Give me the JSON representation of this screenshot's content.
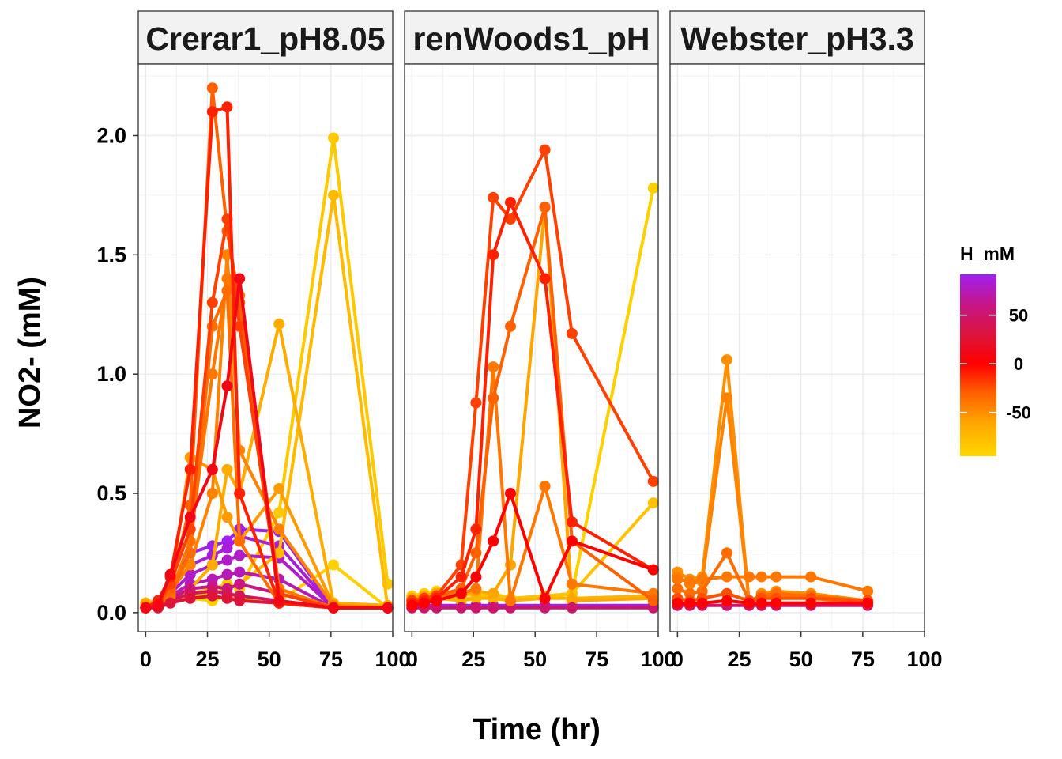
{
  "chart_data": {
    "type": "line",
    "xlabel": "Time (hr)",
    "ylabel": "NO2- (mM)",
    "xlim": [
      -3,
      100
    ],
    "ylim": [
      -0.08,
      2.3
    ],
    "x_ticks": [
      0,
      25,
      50,
      75,
      100
    ],
    "x_tick_labels": [
      "0",
      "25",
      "50",
      "75",
      "100"
    ],
    "y_ticks": [
      0.0,
      0.5,
      1.0,
      1.5,
      2.0
    ],
    "y_tick_labels": [
      "0.0",
      "0.5",
      "1.0",
      "1.5",
      "2.0"
    ],
    "grid": true,
    "legend": {
      "title": "H_mM",
      "position": "right",
      "type": "colorbar",
      "range": [
        -95,
        92
      ],
      "ticks": [
        50,
        0,
        -50
      ],
      "tick_labels": [
        "50",
        "0",
        "-50"
      ],
      "gradient": [
        {
          "value": -95,
          "color": "#FFD700"
        },
        {
          "value": -60,
          "color": "#FFA500"
        },
        {
          "value": -30,
          "color": "#FF6000"
        },
        {
          "value": 0,
          "color": "#FF0000"
        },
        {
          "value": 30,
          "color": "#DC143C"
        },
        {
          "value": 60,
          "color": "#C71585"
        },
        {
          "value": 92,
          "color": "#A020F0"
        }
      ]
    },
    "facets": [
      {
        "title": "Crerar1_pH8.05",
        "series": [
          {
            "h": -30,
            "x": [
              0,
              5,
              10,
              18,
              27,
              33,
              38,
              54,
              76,
              98
            ],
            "y": [
              0.02,
              0.03,
              0.1,
              0.45,
              2.2,
              1.6,
              1.3,
              0.05,
              0.02,
              0.02
            ]
          },
          {
            "h": -10,
            "x": [
              0,
              5,
              10,
              18,
              27,
              33,
              38,
              54,
              76,
              98
            ],
            "y": [
              0.02,
              0.05,
              0.15,
              0.6,
              2.1,
              2.12,
              0.5,
              0.04,
              0.02,
              0.02
            ]
          },
          {
            "h": -20,
            "x": [
              0,
              5,
              10,
              18,
              27,
              33,
              38,
              54,
              76,
              98
            ],
            "y": [
              0.02,
              0.04,
              0.12,
              0.35,
              1.3,
              1.65,
              1.2,
              0.08,
              0.02,
              0.02
            ]
          },
          {
            "h": 10,
            "x": [
              0,
              5,
              10,
              18,
              27,
              33,
              38,
              54,
              76,
              98
            ],
            "y": [
              0.02,
              0.03,
              0.16,
              0.4,
              0.6,
              0.95,
              1.4,
              0.05,
              0.02,
              0.02
            ]
          },
          {
            "h": -40,
            "x": [
              0,
              5,
              10,
              18,
              27,
              33,
              38,
              54,
              76,
              98
            ],
            "y": [
              0.02,
              0.04,
              0.08,
              0.3,
              1.0,
              1.4,
              1.33,
              0.1,
              0.02,
              0.02
            ]
          },
          {
            "h": -55,
            "x": [
              0,
              5,
              10,
              18,
              27,
              33,
              38,
              54,
              76,
              98
            ],
            "y": [
              0.03,
              0.05,
              0.1,
              0.65,
              0.6,
              0.4,
              0.3,
              0.52,
              0.03,
              0.02
            ]
          },
          {
            "h": -45,
            "x": [
              0,
              5,
              10,
              18,
              27,
              33,
              38,
              54,
              76,
              98
            ],
            "y": [
              0.02,
              0.04,
              0.09,
              0.2,
              0.5,
              1.5,
              0.68,
              0.35,
              0.03,
              0.02
            ]
          },
          {
            "h": -35,
            "x": [
              0,
              5,
              10,
              18,
              27,
              33,
              38,
              54,
              76,
              98
            ],
            "y": [
              0.02,
              0.03,
              0.07,
              0.25,
              1.2,
              1.35,
              0.3,
              0.04,
              0.02,
              0.02
            ]
          },
          {
            "h": -65,
            "x": [
              0,
              5,
              10,
              18,
              27,
              33,
              38,
              54,
              76,
              98
            ],
            "y": [
              0.04,
              0.05,
              0.06,
              0.1,
              0.2,
              0.6,
              0.5,
              1.21,
              0.04,
              0.03
            ]
          },
          {
            "h": -85,
            "x": [
              0,
              5,
              10,
              18,
              27,
              33,
              38,
              54,
              76,
              98
            ],
            "y": [
              0.04,
              0.05,
              0.06,
              0.08,
              0.1,
              0.12,
              0.1,
              0.42,
              1.99,
              0.12
            ]
          },
          {
            "h": -75,
            "x": [
              0,
              5,
              10,
              18,
              27,
              33,
              38,
              54,
              76,
              98
            ],
            "y": [
              0.03,
              0.04,
              0.05,
              0.07,
              0.08,
              0.1,
              0.12,
              0.25,
              1.75,
              0.02
            ]
          },
          {
            "h": -90,
            "x": [
              0,
              5,
              10,
              18,
              27,
              33,
              38,
              54,
              76,
              98
            ],
            "y": [
              0.04,
              0.04,
              0.05,
              0.06,
              0.05,
              0.07,
              0.06,
              0.05,
              0.2,
              0.02
            ]
          },
          {
            "h": 92,
            "x": [
              0,
              5,
              10,
              18,
              27,
              33,
              38,
              54,
              76,
              98
            ],
            "y": [
              0.02,
              0.04,
              0.1,
              0.25,
              0.28,
              0.3,
              0.35,
              0.34,
              0.02,
              0.02
            ]
          },
          {
            "h": 85,
            "x": [
              0,
              5,
              10,
              18,
              27,
              33,
              38,
              54,
              76,
              98
            ],
            "y": [
              0.02,
              0.03,
              0.09,
              0.2,
              0.24,
              0.27,
              0.32,
              0.28,
              0.02,
              0.02
            ]
          },
          {
            "h": 80,
            "x": [
              0,
              5,
              10,
              18,
              27,
              33,
              38,
              54,
              76,
              98
            ],
            "y": [
              0.02,
              0.03,
              0.08,
              0.16,
              0.2,
              0.22,
              0.24,
              0.23,
              0.02,
              0.02
            ]
          },
          {
            "h": 75,
            "x": [
              0,
              5,
              10,
              18,
              27,
              33,
              38,
              54,
              76,
              98
            ],
            "y": [
              0.02,
              0.03,
              0.07,
              0.12,
              0.14,
              0.16,
              0.17,
              0.14,
              0.02,
              0.02
            ]
          },
          {
            "h": 60,
            "x": [
              0,
              5,
              10,
              18,
              27,
              33,
              38,
              54,
              76,
              98
            ],
            "y": [
              0.02,
              0.03,
              0.06,
              0.1,
              0.11,
              0.1,
              0.12,
              0.08,
              0.02,
              0.02
            ]
          },
          {
            "h": 45,
            "x": [
              0,
              5,
              10,
              18,
              27,
              33,
              38,
              54,
              76,
              98
            ],
            "y": [
              0.02,
              0.03,
              0.05,
              0.08,
              0.09,
              0.08,
              0.07,
              0.05,
              0.02,
              0.02
            ]
          },
          {
            "h": 30,
            "x": [
              0,
              5,
              10,
              18,
              27,
              33,
              38,
              54,
              76,
              98
            ],
            "y": [
              0.02,
              0.02,
              0.04,
              0.06,
              0.07,
              0.06,
              0.05,
              0.04,
              0.02,
              0.02
            ]
          }
        ]
      },
      {
        "title": "renWoods1_pH",
        "series": [
          {
            "h": -20,
            "x": [
              0,
              5,
              10,
              20,
              26,
              33,
              40,
              54,
              65,
              98
            ],
            "y": [
              0.05,
              0.06,
              0.07,
              0.2,
              0.88,
              1.74,
              1.65,
              1.94,
              1.17,
              0.55
            ]
          },
          {
            "h": -10,
            "x": [
              0,
              5,
              10,
              20,
              26,
              33,
              40,
              54,
              65,
              98
            ],
            "y": [
              0.04,
              0.05,
              0.06,
              0.15,
              0.35,
              1.5,
              1.72,
              1.4,
              0.38,
              0.18
            ]
          },
          {
            "h": -30,
            "x": [
              0,
              5,
              10,
              20,
              26,
              33,
              40,
              54,
              65,
              98
            ],
            "y": [
              0.05,
              0.06,
              0.07,
              0.1,
              0.25,
              0.9,
              1.2,
              1.7,
              0.3,
              0.05
            ]
          },
          {
            "h": 0,
            "x": [
              0,
              5,
              10,
              20,
              26,
              33,
              40,
              54,
              65,
              98
            ],
            "y": [
              0.03,
              0.04,
              0.05,
              0.08,
              0.15,
              0.3,
              0.5,
              0.06,
              0.3,
              0.18
            ]
          },
          {
            "h": -40,
            "x": [
              0,
              5,
              10,
              20,
              26,
              33,
              40,
              54,
              65,
              98
            ],
            "y": [
              0.05,
              0.06,
              0.07,
              0.08,
              0.1,
              1.03,
              0.05,
              0.53,
              0.12,
              0.08
            ]
          },
          {
            "h": -60,
            "x": [
              0,
              5,
              10,
              20,
              26,
              33,
              40,
              54,
              65,
              98
            ],
            "y": [
              0.06,
              0.07,
              0.08,
              0.07,
              0.09,
              0.08,
              0.2,
              1.7,
              0.05,
              0.06
            ]
          },
          {
            "h": -90,
            "x": [
              0,
              5,
              10,
              20,
              26,
              33,
              40,
              54,
              65,
              98
            ],
            "y": [
              0.07,
              0.08,
              0.09,
              0.08,
              0.07,
              0.08,
              0.06,
              0.06,
              0.08,
              1.78
            ]
          },
          {
            "h": -80,
            "x": [
              0,
              5,
              10,
              20,
              26,
              33,
              40,
              54,
              65,
              98
            ],
            "y": [
              0.06,
              0.07,
              0.07,
              0.06,
              0.06,
              0.07,
              0.06,
              0.07,
              0.08,
              0.46
            ]
          },
          {
            "h": -70,
            "x": [
              0,
              5,
              10,
              20,
              26,
              33,
              40,
              54,
              65,
              98
            ],
            "y": [
              0.05,
              0.06,
              0.06,
              0.05,
              0.06,
              0.06,
              0.05,
              0.06,
              0.06,
              0.07
            ]
          },
          {
            "h": 85,
            "x": [
              0,
              5,
              10,
              20,
              26,
              33,
              40,
              54,
              65,
              98
            ],
            "y": [
              0.03,
              0.03,
              0.03,
              0.03,
              0.03,
              0.03,
              0.03,
              0.03,
              0.03,
              0.03
            ]
          },
          {
            "h": 50,
            "x": [
              0,
              5,
              10,
              20,
              26,
              33,
              40,
              54,
              65,
              98
            ],
            "y": [
              0.02,
              0.02,
              0.02,
              0.02,
              0.02,
              0.02,
              0.02,
              0.02,
              0.02,
              0.02
            ]
          }
        ]
      },
      {
        "title": "Webster_pH3.3",
        "series": [
          {
            "h": -50,
            "x": [
              0,
              5,
              10,
              20,
              29,
              34,
              40,
              54,
              77
            ],
            "y": [
              0.17,
              0.14,
              0.15,
              1.06,
              0.04,
              0.08,
              0.09,
              0.08,
              0.05
            ]
          },
          {
            "h": -45,
            "x": [
              0,
              5,
              10,
              20,
              29,
              34,
              40,
              54,
              77
            ],
            "y": [
              0.15,
              0.12,
              0.13,
              0.9,
              0.05,
              0.06,
              0.07,
              0.06,
              0.04
            ]
          },
          {
            "h": -40,
            "x": [
              0,
              5,
              10,
              20,
              29,
              34,
              40,
              54,
              77
            ],
            "y": [
              0.14,
              0.13,
              0.14,
              0.15,
              0.15,
              0.15,
              0.15,
              0.15,
              0.09
            ]
          },
          {
            "h": -35,
            "x": [
              0,
              5,
              10,
              20,
              29,
              34,
              40,
              54,
              77
            ],
            "y": [
              0.1,
              0.08,
              0.09,
              0.25,
              0.05,
              0.07,
              0.08,
              0.07,
              0.05
            ]
          },
          {
            "h": -25,
            "x": [
              0,
              5,
              10,
              20,
              29,
              34,
              40,
              54,
              77
            ],
            "y": [
              0.06,
              0.05,
              0.06,
              0.08,
              0.05,
              0.06,
              0.06,
              0.06,
              0.05
            ]
          },
          {
            "h": 0,
            "x": [
              0,
              5,
              10,
              20,
              29,
              34,
              40,
              54,
              77
            ],
            "y": [
              0.04,
              0.04,
              0.04,
              0.05,
              0.04,
              0.04,
              0.04,
              0.04,
              0.04
            ]
          },
          {
            "h": 50,
            "x": [
              0,
              5,
              10,
              20,
              29,
              34,
              40,
              54,
              77
            ],
            "y": [
              0.03,
              0.03,
              0.03,
              0.03,
              0.03,
              0.03,
              0.03,
              0.03,
              0.03
            ]
          }
        ]
      }
    ]
  }
}
